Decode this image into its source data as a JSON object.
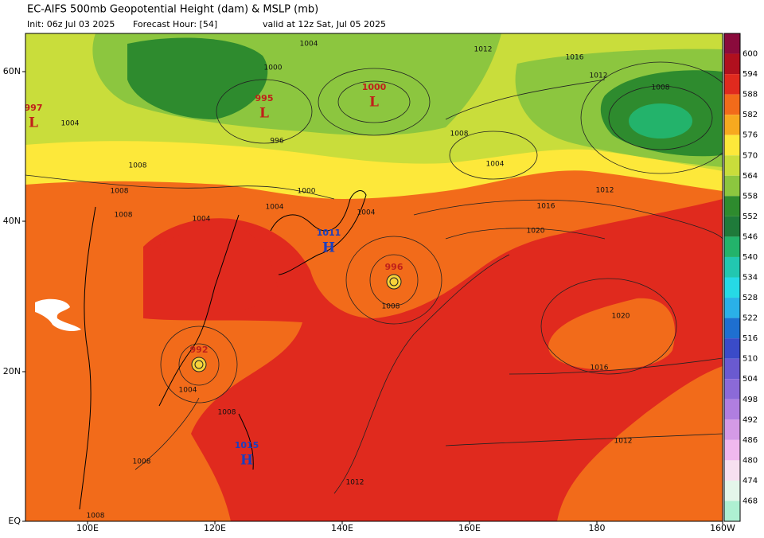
{
  "header": {
    "title": "EC-AIFS 500mb Geopotential Height (dam) & MSLP (mb)",
    "init": "Init: 06z Jul 03 2025",
    "forecast_hour": "Forecast Hour: [54]",
    "valid": "valid at 12z Sat, Jul 05 2025"
  },
  "map": {
    "lat_labels": [
      "60N",
      "40N",
      "20N",
      "EQ"
    ],
    "lon_labels": [
      "100E",
      "120E",
      "140E",
      "160E",
      "180",
      "160W"
    ],
    "pressure_centers": [
      {
        "type": "L",
        "value": 997
      },
      {
        "type": "L",
        "value": 995
      },
      {
        "type": "L",
        "value": 1000
      },
      {
        "type": "H",
        "value": 1011
      },
      {
        "type": "L",
        "value": 996
      },
      {
        "type": "L",
        "value": 992
      },
      {
        "type": "H",
        "value": 1015
      }
    ],
    "isobar_labels": [
      1004,
      1000,
      1012,
      1016,
      1012,
      1008,
      1004,
      1008,
      1012,
      1016,
      1020,
      1020,
      1016,
      1012,
      1012,
      1008,
      1004,
      1000,
      1004,
      1004,
      1008,
      1008,
      1004,
      1008,
      1008,
      1008,
      996,
      1004,
      1008
    ]
  },
  "colorbar": {
    "labels": [
      600,
      594,
      588,
      582,
      576,
      570,
      564,
      558,
      552,
      546,
      540,
      534,
      528,
      522,
      516,
      510,
      504,
      498,
      492,
      486,
      480,
      474,
      468
    ],
    "colors": [
      "#8a0b3c",
      "#b0101e",
      "#e02a1e",
      "#f26b1a",
      "#f7a91f",
      "#fde83a",
      "#c9dd3b",
      "#8cc63f",
      "#2e8b2e",
      "#1f7a3a",
      "#23b36b",
      "#22c7b0",
      "#26d9e6",
      "#2ab0e8",
      "#1e6fd0",
      "#3a4bc8",
      "#6a5ad0",
      "#8b6ad8",
      "#b07ee0",
      "#d49ae6",
      "#f0b8ee",
      "#f7e0f0",
      "#e4f6ea",
      "#aef0d2"
    ]
  }
}
